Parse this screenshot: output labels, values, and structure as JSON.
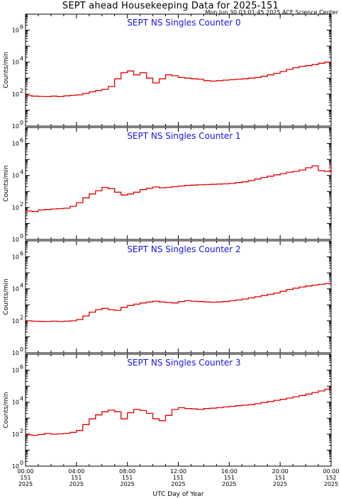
{
  "header": {
    "title": "SEPT ahead Housekeeping Data for 2025-151",
    "timestamp": "Mon Jun 30 03:01:45 2025 ACE Science Center"
  },
  "colors": {
    "line": "#e00000",
    "panel_title": "#1414e6",
    "frame": "#000000"
  },
  "chart_data": [
    {
      "type": "line",
      "title": "SEPT NS Singles Counter 0",
      "ylabel": "Counts/min",
      "yscale": "log",
      "ylim": [
        1,
        10000000
      ],
      "y_ticks": [
        "10",
        "10",
        "10",
        "10"
      ],
      "y_tick_exponents": [
        "0",
        "2",
        "4",
        "6"
      ],
      "xlabel": "",
      "series": [
        {
          "x": [
            0,
            0.5,
            1,
            1.5,
            2,
            2.5,
            3,
            3.5,
            4,
            4.5,
            5,
            5.5,
            6,
            6.5,
            7,
            7.5,
            8,
            8.5,
            9,
            9.5,
            10,
            10.5,
            11,
            11.5,
            12,
            12.5,
            13,
            13.5,
            14,
            14.5,
            15,
            15.5,
            16,
            16.5,
            17,
            17.5,
            18,
            18.5,
            19,
            19.5,
            20,
            20.5,
            21,
            21.5,
            22,
            22.5,
            23,
            23.5,
            24
          ],
          "y": [
            80,
            75,
            72,
            70,
            75,
            70,
            78,
            85,
            90,
            110,
            140,
            170,
            200,
            300,
            900,
            2200,
            2800,
            1600,
            2200,
            1000,
            500,
            900,
            1600,
            1400,
            1100,
            1000,
            900,
            850,
            700,
            650,
            700,
            750,
            800,
            850,
            900,
            1000,
            1100,
            1300,
            1600,
            2000,
            2600,
            3500,
            4500,
            5500,
            6000,
            7000,
            8500,
            10000,
            11000
          ]
        }
      ]
    },
    {
      "type": "line",
      "title": "SEPT NS Singles Counter 1",
      "ylabel": "Counts/min",
      "yscale": "log",
      "ylim": [
        1,
        10000000
      ],
      "y_ticks": [
        "10",
        "10",
        "10",
        "10"
      ],
      "y_tick_exponents": [
        "0",
        "2",
        "4",
        "6"
      ],
      "xlabel": "",
      "series": [
        {
          "x": [
            0,
            0.5,
            1,
            1.5,
            2,
            2.5,
            3,
            3.5,
            4,
            4.5,
            5,
            5.5,
            6,
            6.5,
            7,
            7.5,
            8,
            8.5,
            9,
            9.5,
            10,
            10.5,
            11,
            11.5,
            12,
            12.5,
            13,
            13.5,
            14,
            14.5,
            15,
            15.5,
            16,
            16.5,
            17,
            17.5,
            18,
            18.5,
            19,
            19.5,
            20,
            20.5,
            21,
            21.5,
            22,
            22.5,
            23,
            23.5,
            24
          ],
          "y": [
            60,
            55,
            70,
            75,
            80,
            85,
            90,
            120,
            200,
            400,
            700,
            1100,
            1800,
            1500,
            900,
            600,
            700,
            900,
            1300,
            1600,
            1900,
            1700,
            1800,
            2000,
            2200,
            2400,
            2500,
            2600,
            2700,
            2800,
            2900,
            3000,
            3200,
            3600,
            4000,
            4800,
            6000,
            7500,
            9000,
            11000,
            13000,
            16000,
            18000,
            22000,
            30000,
            40000,
            20000,
            18000,
            45000
          ]
        }
      ]
    },
    {
      "type": "line",
      "title": "SEPT NS Singles Counter 2",
      "ylabel": "Counts/min",
      "yscale": "log",
      "ylim": [
        1,
        10000000
      ],
      "y_ticks": [
        "10",
        "10",
        "10",
        "10"
      ],
      "y_tick_exponents": [
        "0",
        "2",
        "4",
        "6"
      ],
      "xlabel": "",
      "series": [
        {
          "x": [
            0,
            0.5,
            1,
            1.5,
            2,
            2.5,
            3,
            3.5,
            4,
            4.5,
            5,
            5.5,
            6,
            6.5,
            7,
            7.5,
            8,
            8.5,
            9,
            9.5,
            10,
            10.5,
            11,
            11.5,
            12,
            12.5,
            13,
            13.5,
            14,
            14.5,
            15,
            15.5,
            16,
            16.5,
            17,
            17.5,
            18,
            18.5,
            19,
            19.5,
            20,
            20.5,
            21,
            21.5,
            22,
            22.5,
            23,
            23.5,
            24
          ],
          "y": [
            100,
            95,
            92,
            90,
            95,
            90,
            95,
            100,
            120,
            200,
            350,
            500,
            600,
            500,
            450,
            700,
            900,
            1100,
            1300,
            1500,
            1700,
            1500,
            1400,
            1300,
            1600,
            1800,
            1700,
            1600,
            1500,
            1450,
            1500,
            1600,
            1800,
            2000,
            2300,
            2700,
            3200,
            3800,
            4500,
            5500,
            7000,
            9000,
            11000,
            13000,
            15000,
            17000,
            19000,
            21000,
            23000
          ]
        }
      ]
    },
    {
      "type": "line",
      "title": "SEPT NS Singles Counter 3",
      "ylabel": "Counts/min",
      "yscale": "log",
      "ylim": [
        1,
        10000000
      ],
      "y_ticks": [
        "10",
        "10",
        "10",
        "10"
      ],
      "y_tick_exponents": [
        "0",
        "2",
        "4",
        "6"
      ],
      "xlabel": "UTC Day of Year",
      "x_ticks": [
        {
          "x": 0,
          "time": "00:00",
          "doy": "151",
          "year": "2025"
        },
        {
          "x": 4,
          "time": "04:00",
          "doy": "151",
          "year": "2025"
        },
        {
          "x": 8,
          "time": "08:00",
          "doy": "151",
          "year": "2025"
        },
        {
          "x": 12,
          "time": "12:00",
          "doy": "151",
          "year": "2025"
        },
        {
          "x": 16,
          "time": "16:00",
          "doy": "151",
          "year": "2025"
        },
        {
          "x": 20,
          "time": "20:00",
          "doy": "151",
          "year": "2025"
        },
        {
          "x": 24,
          "time": "00:00",
          "doy": "152",
          "year": "2025"
        }
      ],
      "series": [
        {
          "x": [
            0,
            0.5,
            1,
            1.5,
            2,
            2.5,
            3,
            3.5,
            4,
            4.5,
            5,
            5.5,
            6,
            6.5,
            7,
            7.5,
            8,
            8.5,
            9,
            9.5,
            10,
            10.5,
            11,
            11.5,
            12,
            12.5,
            13,
            13.5,
            14,
            14.5,
            15,
            15.5,
            16,
            16.5,
            17,
            17.5,
            18,
            18.5,
            19,
            19.5,
            20,
            20.5,
            21,
            21.5,
            22,
            22.5,
            23,
            23.5,
            24
          ],
          "y": [
            90,
            85,
            95,
            110,
            100,
            105,
            110,
            130,
            170,
            400,
            900,
            1600,
            2500,
            3200,
            2500,
            900,
            2200,
            3500,
            3000,
            2000,
            900,
            700,
            1500,
            3500,
            4500,
            4000,
            3800,
            3500,
            4000,
            4200,
            4500,
            5000,
            5500,
            6000,
            6500,
            7000,
            8000,
            9500,
            11000,
            13000,
            15000,
            18000,
            22000,
            26000,
            32000,
            40000,
            50000,
            65000,
            75000
          ]
        }
      ]
    }
  ]
}
